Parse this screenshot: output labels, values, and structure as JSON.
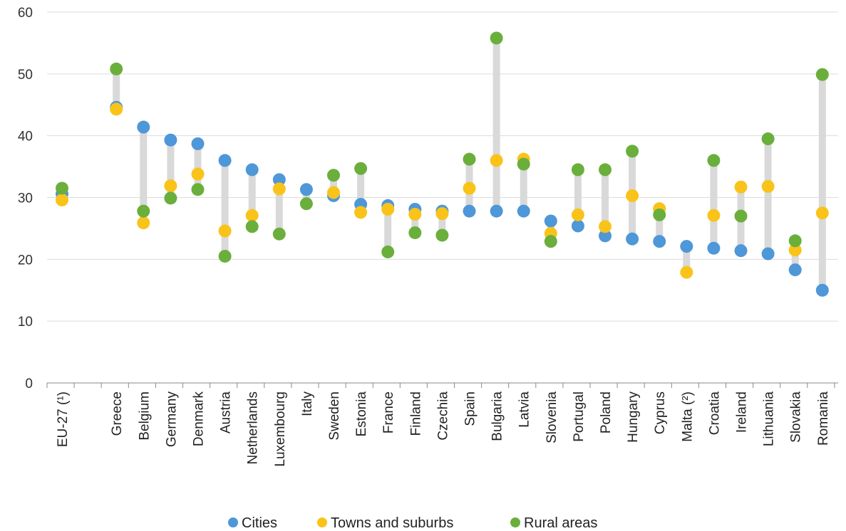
{
  "chart_data": {
    "type": "scatter",
    "categories": [
      "EU-27 (¹)",
      "Greece",
      "Belgium",
      "Germany",
      "Denmark",
      "Austria",
      "Netherlands",
      "Luxembourg",
      "Italy",
      "Sweden",
      "Estonia",
      "France",
      "Finland",
      "Czechia",
      "Spain",
      "Bulgaria",
      "Latvia",
      "Slovenia",
      "Portugal",
      "Poland",
      "Hungary",
      "Cyprus",
      "Malta (²)",
      "Croatia",
      "Ireland",
      "Lithuania",
      "Slovakia",
      "Romania"
    ],
    "series": [
      {
        "name": "Cities",
        "color": "#4e97d8",
        "values": [
          30.6,
          44.6,
          41.4,
          39.3,
          38.7,
          36.0,
          34.5,
          32.9,
          31.3,
          30.3,
          28.9,
          28.7,
          28.1,
          27.8,
          27.8,
          27.8,
          27.8,
          26.2,
          25.4,
          23.8,
          23.3,
          22.9,
          22.1,
          21.8,
          21.4,
          20.9,
          18.3,
          15.0
        ]
      },
      {
        "name": "Towns and suburbs",
        "color": "#f9c31a",
        "values": [
          29.6,
          44.3,
          25.9,
          31.9,
          33.8,
          24.6,
          27.1,
          31.4,
          null,
          30.8,
          27.6,
          28.1,
          27.3,
          27.4,
          31.5,
          36.0,
          36.2,
          24.2,
          27.2,
          25.3,
          30.3,
          28.2,
          17.9,
          27.1,
          31.7,
          31.8,
          21.5,
          27.5
        ]
      },
      {
        "name": "Rural areas",
        "color": "#6aaf3c",
        "values": [
          31.5,
          50.8,
          27.8,
          29.9,
          31.3,
          20.5,
          25.3,
          24.1,
          29.0,
          33.6,
          34.7,
          21.2,
          24.3,
          23.9,
          36.2,
          55.8,
          35.4,
          22.9,
          34.5,
          34.5,
          37.5,
          27.2,
          null,
          36.0,
          27.0,
          39.5,
          23.0,
          49.9
        ]
      }
    ],
    "xlabel": "",
    "ylabel": "",
    "ylim": [
      0,
      60
    ],
    "yticks": [
      0,
      10,
      20,
      30,
      40,
      50,
      60
    ],
    "grid": true,
    "legend_position": "bottom-center"
  },
  "legend": {
    "items": [
      {
        "label": "Cities",
        "color": "#4e97d8"
      },
      {
        "label": "Towns and suburbs",
        "color": "#f9c31a"
      },
      {
        "label": "Rural areas",
        "color": "#6aaf3c"
      }
    ]
  },
  "colors": {
    "range_bar": "#d9d9d9",
    "gridline": "#dcdcdc",
    "axis": "#888888"
  }
}
